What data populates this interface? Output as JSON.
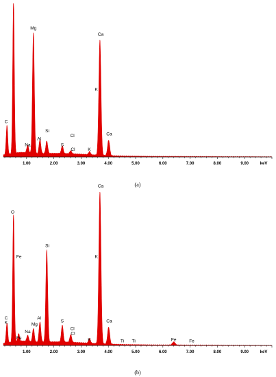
{
  "chart_data": [
    {
      "type": "area",
      "caption": "(a)",
      "xlabel": "keV",
      "xlim": [
        0.15,
        10.0
      ],
      "ylim": [
        0,
        1.0
      ],
      "xticks": [
        "1.00",
        "2.00",
        "3.00",
        "4.00",
        "5.00",
        "6.00",
        "7.00",
        "8.00",
        "9.00"
      ],
      "series_color": "#e00000",
      "peaks": [
        {
          "element": "C",
          "energy": 0.28,
          "height": 0.19,
          "width": 0.03
        },
        {
          "element": "O",
          "energy": 0.52,
          "height": 0.99,
          "width": 0.03
        },
        {
          "element": "Na",
          "energy": 1.04,
          "height": 0.05,
          "width": 0.035
        },
        {
          "element": "Mg",
          "energy": 1.25,
          "height": 0.79,
          "width": 0.035
        },
        {
          "element": "Al",
          "energy": 1.49,
          "height": 0.09,
          "width": 0.035
        },
        {
          "element": "Si",
          "energy": 1.74,
          "height": 0.08,
          "width": 0.035
        },
        {
          "element": "S",
          "energy": 2.31,
          "height": 0.05,
          "width": 0.035
        },
        {
          "element": "Cl",
          "energy": 2.62,
          "height": 0.02,
          "width": 0.035
        },
        {
          "element": "K",
          "energy": 3.31,
          "height": 0.02,
          "width": 0.035
        },
        {
          "element": "Ca",
          "energy": 3.69,
          "height": 0.75,
          "width": 0.04
        },
        {
          "element": "Ca",
          "energy": 4.01,
          "height": 0.1,
          "width": 0.04
        }
      ],
      "labels": [
        {
          "text": "O",
          "energy": 0.52,
          "level": 1.03
        },
        {
          "text": "C",
          "energy": 0.25,
          "level": 0.22
        },
        {
          "text": "Mg",
          "energy": 1.25,
          "level": 0.83
        },
        {
          "text": "Na",
          "energy": 1.04,
          "level": 0.07
        },
        {
          "text": "Al",
          "energy": 1.46,
          "level": 0.11
        },
        {
          "text": "Si",
          "energy": 1.76,
          "level": 0.16
        },
        {
          "text": "S",
          "energy": 2.31,
          "level": 0.07
        },
        {
          "text": "Cl",
          "energy": 2.68,
          "level": 0.13
        },
        {
          "text": "Cl",
          "energy": 2.7,
          "level": 0.04
        },
        {
          "text": "K",
          "energy": 3.3,
          "level": 0.04
        },
        {
          "text": "K",
          "energy": 3.56,
          "level": 0.43
        },
        {
          "text": "Ca",
          "energy": 3.72,
          "level": 0.79
        },
        {
          "text": "Ca",
          "energy": 4.03,
          "level": 0.14
        }
      ]
    },
    {
      "type": "area",
      "caption": "(b)",
      "xlabel": "keV",
      "xlim": [
        0.15,
        10.0
      ],
      "ylim": [
        0,
        1.0
      ],
      "xticks": [
        "1.00",
        "2.00",
        "3.00",
        "4.00",
        "5.00",
        "6.00",
        "7.00",
        "8.00",
        "9.00"
      ],
      "series_color": "#e00000",
      "peaks": [
        {
          "element": "C",
          "energy": 0.28,
          "height": 0.13,
          "width": 0.03
        },
        {
          "element": "O",
          "energy": 0.52,
          "height": 0.83,
          "width": 0.03
        },
        {
          "element": "Fe",
          "energy": 0.71,
          "height": 0.05,
          "width": 0.03
        },
        {
          "element": "Na",
          "energy": 1.04,
          "height": 0.04,
          "width": 0.035
        },
        {
          "element": "Mg",
          "energy": 1.25,
          "height": 0.09,
          "width": 0.035
        },
        {
          "element": "Al",
          "energy": 1.49,
          "height": 0.13,
          "width": 0.035
        },
        {
          "element": "Si",
          "energy": 1.74,
          "height": 0.6,
          "width": 0.035
        },
        {
          "element": "S",
          "energy": 2.31,
          "height": 0.11,
          "width": 0.035
        },
        {
          "element": "Cl",
          "energy": 2.62,
          "height": 0.05,
          "width": 0.035
        },
        {
          "element": "K",
          "energy": 3.31,
          "height": 0.03,
          "width": 0.035
        },
        {
          "element": "Ca",
          "energy": 3.69,
          "height": 0.99,
          "width": 0.04
        },
        {
          "element": "Ca",
          "energy": 4.01,
          "height": 0.11,
          "width": 0.04
        },
        {
          "element": "Fe",
          "energy": 6.4,
          "height": 0.02,
          "width": 0.05
        }
      ],
      "labels": [
        {
          "text": "O",
          "energy": 0.49,
          "level": 0.86
        },
        {
          "text": "Fe",
          "energy": 0.72,
          "level": 0.57
        },
        {
          "text": "C",
          "energy": 0.25,
          "level": 0.17
        },
        {
          "text": "K",
          "energy": 0.25,
          "level": 0.14
        },
        {
          "text": "Fe",
          "energy": 0.72,
          "level": 0.04
        },
        {
          "text": "Na",
          "energy": 1.04,
          "level": 0.08
        },
        {
          "text": "Mg",
          "energy": 1.29,
          "level": 0.13
        },
        {
          "text": "Al",
          "energy": 1.46,
          "level": 0.17
        },
        {
          "text": "Si",
          "energy": 1.76,
          "level": 0.64
        },
        {
          "text": "S",
          "energy": 2.31,
          "level": 0.15
        },
        {
          "text": "Cl",
          "energy": 2.68,
          "level": 0.1
        },
        {
          "text": "Cl",
          "energy": 2.7,
          "level": 0.07
        },
        {
          "text": "K",
          "energy": 3.3,
          "level": 0.03
        },
        {
          "text": "K",
          "energy": 3.56,
          "level": 0.57
        },
        {
          "text": "Ca",
          "energy": 3.72,
          "level": 1.03
        },
        {
          "text": "Ca",
          "energy": 4.03,
          "level": 0.15
        },
        {
          "text": "Ti",
          "energy": 4.51,
          "level": 0.02
        },
        {
          "text": "Ti",
          "energy": 4.93,
          "level": 0.02
        },
        {
          "text": "Fe",
          "energy": 6.4,
          "level": 0.03
        },
        {
          "text": "Fe",
          "energy": 7.06,
          "level": 0.02
        }
      ]
    }
  ]
}
